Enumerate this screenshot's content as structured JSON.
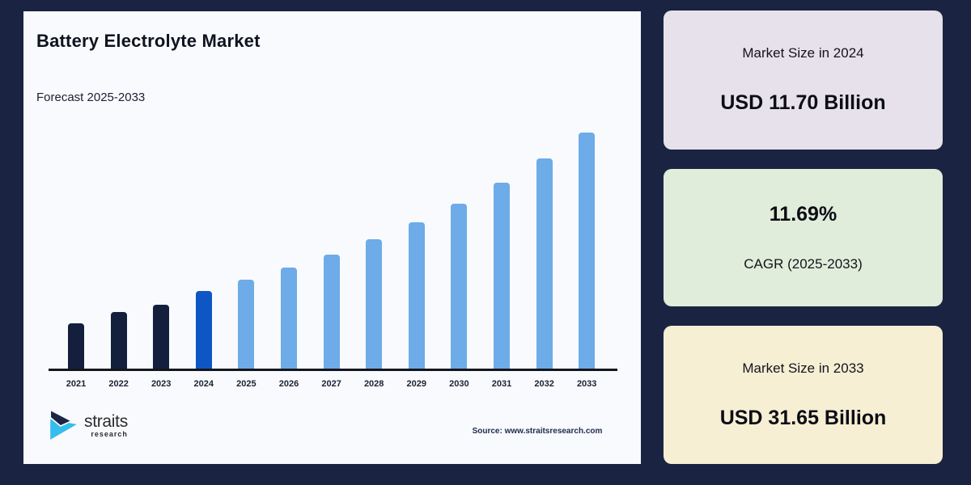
{
  "page": {
    "background_color": "#1a2442"
  },
  "panel": {
    "title": "Battery Electrolyte Market",
    "subtitle": "Forecast 2025-2033",
    "source_note": "Source: www.straitsresearch.com",
    "background_color": "#f8fafd",
    "logo": {
      "name": "straits",
      "subname": "research",
      "mark_navy": "#1b2647",
      "mark_cyan": "#35bdee"
    }
  },
  "chart_data": {
    "type": "bar",
    "title": "Battery Electrolyte Market",
    "subtitle": "Forecast 2025-2033",
    "unit": "USD Billion",
    "categories": [
      "2021",
      "2022",
      "2023",
      "2024",
      "2025",
      "2026",
      "2027",
      "2028",
      "2029",
      "2030",
      "2031",
      "2032",
      "2033"
    ],
    "values": [
      7.6,
      9.0,
      10.0,
      11.7,
      13.07,
      14.6,
      16.3,
      18.21,
      20.34,
      22.71,
      25.37,
      28.34,
      31.65
    ],
    "segment_by_year": [
      "historical",
      "historical",
      "historical",
      "base_year",
      "forecast",
      "forecast",
      "forecast",
      "forecast",
      "forecast",
      "forecast",
      "forecast",
      "forecast",
      "forecast"
    ],
    "colors": {
      "historical": "#141f3d",
      "base_year": "#0e56c4",
      "forecast": "#6dabe9"
    },
    "labeled_points": {
      "2024": 11.7,
      "2033": 31.65
    },
    "cagr_percent_2025_2033": 11.69,
    "xlabel": "",
    "ylabel": "",
    "grid": false,
    "legend": false,
    "y_axis_shown": false
  },
  "cards": [
    {
      "label": "Market Size in 2024",
      "value": "USD 11.70 Billion",
      "background_color": "#e6e1ea"
    },
    {
      "value": "11.69%",
      "label": "CAGR (2025-2033)",
      "background_color": "#e0edda"
    },
    {
      "label": "Market Size in 2033",
      "value": "USD 31.65 Billion",
      "background_color": "#f6efd3"
    }
  ]
}
